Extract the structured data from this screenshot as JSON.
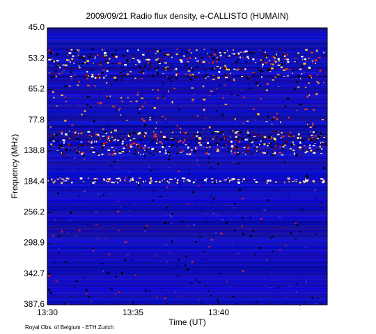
{
  "chart_data": {
    "type": "spectrogram",
    "title": "2009/09/21  Radio flux density, e-CALLISTO (HUMAIN)",
    "x_label": "Time (UT)",
    "y_label": "Frequency (MHz)",
    "xticks": [
      "13:30",
      "13:35",
      "13:40"
    ],
    "yticks": [
      "45.0",
      "53.2",
      "65.2",
      "77.8",
      "138.8",
      "184.4",
      "256.2",
      "298.9",
      "342.7",
      "387.6"
    ],
    "footer": "Royal Obs. of Belgium - ETH Zurich"
  }
}
